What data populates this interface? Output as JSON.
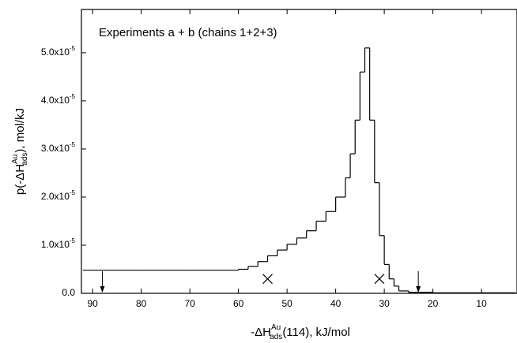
{
  "chart_data": {
    "type": "histogram",
    "annotation": "Experiments a + b (chains 1+2+3)",
    "xlabel": {
      "pre": "-ΔH",
      "sup": "Au",
      "sub": "ads",
      "post": "(114), kJ/mol"
    },
    "ylabel": {
      "pre": "p(-ΔH",
      "sup": "Au",
      "sub": "ads",
      "post": "), mol/kJ"
    },
    "color": "#000000",
    "bins": [
      3,
      10,
      20,
      25,
      27,
      28,
      29,
      30,
      31,
      32,
      33,
      34,
      35,
      36,
      37,
      38,
      40,
      42,
      44,
      46,
      48,
      50,
      52,
      54,
      56,
      58,
      60,
      70,
      80,
      92
    ],
    "values": [
      1e-07,
      1e-07,
      2e-07,
      5e-07,
      1.5e-06,
      3e-06,
      6e-06,
      1.2e-05,
      2.3e-05,
      3.6e-05,
      5.1e-05,
      4.6e-05,
      3.6e-05,
      2.9e-05,
      2.4e-05,
      2e-05,
      1.7e-05,
      1.5e-05,
      1.3e-05,
      1.15e-05,
      1.02e-05,
      9e-06,
      7.8e-06,
      6.6e-06,
      5.6e-06,
      5e-06,
      4.8e-06,
      4.8e-06,
      4.8e-06
    ],
    "arrows": [
      88,
      23
    ],
    "crosses": {
      "x": [
        54,
        31
      ],
      "y": [
        3e-06,
        3e-06
      ]
    },
    "xlim": [
      92.3,
      2.7
    ],
    "xticks": [
      90,
      80,
      70,
      60,
      50,
      40,
      30,
      20,
      10
    ],
    "ylim": [
      0,
      5.9e-05
    ],
    "yticks": [
      {
        "value": 0,
        "label": "0.0"
      },
      {
        "value": 1e-05,
        "label": "1.0x10-5"
      },
      {
        "value": 2e-05,
        "label": "2.0x10-5"
      },
      {
        "value": 3e-05,
        "label": "3.0x10-5"
      },
      {
        "value": 4e-05,
        "label": "4.0x10-5"
      },
      {
        "value": 5e-05,
        "label": "5.0x10-5"
      }
    ]
  }
}
